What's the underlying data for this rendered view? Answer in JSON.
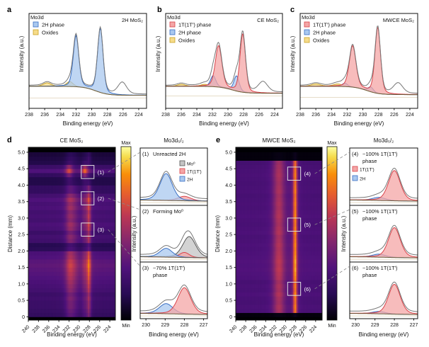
{
  "chart_data": [
    {
      "type": "area",
      "panel_label": "a",
      "title": "2H MoS₂",
      "core_level": "Mo3d",
      "xlabel": "Binding energy (eV)",
      "ylabel": "Intensity (a.u.)",
      "xlim": [
        238,
        223
      ],
      "xticks": [
        238,
        236,
        234,
        232,
        230,
        228,
        226,
        224
      ],
      "legend": [
        {
          "name": "2H phase",
          "color": "#a9c8ef",
          "stroke": "#3a6fc4"
        },
        {
          "name": "Oxides",
          "color": "#f6dc8a",
          "stroke": "#c9a227"
        }
      ],
      "components": [
        {
          "name": "Oxides",
          "color": "#f6dc8a",
          "stroke": "#c9a227",
          "peaks": [
            [
              235.7,
              0.05,
              0.6
            ],
            [
              232.8,
              0.07,
              0.5
            ]
          ]
        },
        {
          "name": "2H phase",
          "color": "#a9c8ef",
          "stroke": "#3a6fc4",
          "peaks": [
            [
              232.0,
              0.74,
              0.42
            ],
            [
              228.9,
              0.93,
              0.42
            ]
          ]
        }
      ],
      "other_peaks": [
        [
          226.1,
          0.17,
          0.65
        ]
      ],
      "background": [
        0.0,
        -0.13,
        229.5
      ]
    },
    {
      "type": "area",
      "panel_label": "b",
      "title": "CE MoS₂",
      "core_level": "Mo3d",
      "xlabel": "Binding energy (eV)",
      "ylabel": "Intensity (a.u.)",
      "xlim": [
        238,
        223
      ],
      "xticks": [
        238,
        236,
        234,
        232,
        230,
        228,
        226,
        224
      ],
      "legend": [
        {
          "name": "1T(1T′) phase",
          "color": "#f4a6a6",
          "stroke": "#d9434a"
        },
        {
          "name": "2H phase",
          "color": "#a9c8ef",
          "stroke": "#3a6fc4"
        },
        {
          "name": "Oxides",
          "color": "#f6dc8a",
          "stroke": "#c9a227"
        }
      ],
      "components": [
        {
          "name": "Oxides",
          "color": "#f6dc8a",
          "stroke": "#c9a227",
          "peaks": [
            [
              236.0,
              0.03,
              0.6
            ],
            [
              233.0,
              0.03,
              0.6
            ]
          ]
        },
        {
          "name": "2H phase",
          "color": "#a9c8ef",
          "stroke": "#3a6fc4",
          "peaks": [
            [
              231.9,
              0.16,
              0.4
            ],
            [
              228.9,
              0.22,
              0.4
            ]
          ]
        },
        {
          "name": "1T(1T′) phase",
          "color": "#f4a6a6",
          "stroke": "#d9434a",
          "peaks": [
            [
              231.2,
              0.6,
              0.5
            ],
            [
              228.1,
              0.85,
              0.42
            ]
          ]
        }
      ],
      "other_peaks": [
        [
          225.5,
          0.15,
          0.7
        ]
      ],
      "background": [
        0.0,
        -0.1,
        229.5
      ]
    },
    {
      "type": "area",
      "panel_label": "c",
      "title": "MWCE MoS₂",
      "core_level": "Mo3d",
      "xlabel": "Binding energy (eV)",
      "ylabel": "Intensity (a.u.)",
      "xlim": [
        238,
        223
      ],
      "xticks": [
        238,
        236,
        234,
        232,
        230,
        228,
        226,
        224
      ],
      "legend": [
        {
          "name": "1T(1T′) phase",
          "color": "#f4a6a6",
          "stroke": "#d9434a"
        },
        {
          "name": "2H phase",
          "color": "#a9c8ef",
          "stroke": "#3a6fc4"
        },
        {
          "name": "Oxides",
          "color": "#f6dc8a",
          "stroke": "#c9a227"
        }
      ],
      "components": [
        {
          "name": "Oxides",
          "color": "#f6dc8a",
          "stroke": "#c9a227",
          "peaks": [
            [
              236.0,
              0.035,
              0.7
            ],
            [
              233.2,
              0.035,
              0.7
            ]
          ]
        },
        {
          "name": "2H phase",
          "color": "#a9c8ef",
          "stroke": "#3a6fc4",
          "peaks": [
            [
              232.3,
              0.05,
              0.4
            ],
            [
              229.0,
              0.07,
              0.4
            ]
          ]
        },
        {
          "name": "1T(1T′) phase",
          "color": "#f4a6a6",
          "stroke": "#d9434a",
          "peaks": [
            [
              231.3,
              0.6,
              0.5
            ],
            [
              228.1,
              0.96,
              0.42
            ]
          ]
        }
      ],
      "other_peaks": [
        [
          225.5,
          0.15,
          0.7
        ]
      ],
      "background": [
        0.0,
        -0.12,
        229.5
      ]
    },
    {
      "type": "heatmap",
      "panel_label": "d",
      "title": "CE MoS₂",
      "xlabel": "Binding energy (eV)",
      "ylabel": "Distance (mm)",
      "xlim": [
        240,
        222.9
      ],
      "ylim": [
        -0.1,
        5.15
      ],
      "xticks": [
        240,
        238,
        236,
        234,
        232,
        230,
        228,
        226,
        224
      ],
      "yticks": [
        0,
        0.5,
        1.0,
        1.5,
        2.0,
        2.5,
        3.0,
        3.5,
        4.0,
        4.5,
        5.0
      ],
      "colorbar": {
        "max_label": "Max",
        "min_label": "Min"
      },
      "row_step_mm": 0.125,
      "row_intensity": [
        0.5,
        0.55,
        0.6,
        0.6,
        0.65,
        0.6,
        0.7,
        0.75,
        0.8,
        0.85,
        0.9,
        0.95,
        1.0,
        0.95,
        0.85,
        0.8,
        0.4,
        0.35,
        0.65,
        0.7,
        0.6,
        0.75,
        0.8,
        0.7,
        0.75,
        0.7,
        0.8,
        0.75,
        0.85,
        0.7,
        0.5,
        0.5,
        0.3,
        0.3,
        0.5,
        0.85,
        0.6,
        0.3,
        0.25,
        0.2
      ],
      "row_2H_fraction": [
        0.3,
        0.3,
        0.3,
        0.3,
        0.3,
        0.3,
        0.3,
        0.3,
        0.3,
        0.3,
        0.3,
        0.3,
        0.3,
        0.3,
        0.3,
        0.3,
        0.3,
        0.3,
        0.3,
        0.3,
        0.3,
        0.3,
        0.3,
        0.3,
        0.3,
        0.3,
        0.3,
        0.3,
        0.3,
        0.3,
        0.3,
        0.3,
        0.5,
        0.6,
        0.9,
        0.9,
        0.9,
        0.5,
        0.3,
        0.3
      ],
      "regions": [
        {
          "label": "(1)",
          "distance": [
            4.2,
            4.6
          ],
          "energy": [
            229.6,
            227.1
          ]
        },
        {
          "label": "(2)",
          "distance": [
            3.4,
            3.8
          ],
          "energy": [
            229.6,
            227.1
          ]
        },
        {
          "label": "(3)",
          "distance": [
            2.45,
            2.85
          ],
          "energy": [
            229.6,
            227.1
          ]
        }
      ],
      "spectra": {
        "title": "Mo3d₅/₂",
        "xlabel": "Binding energy (eV)",
        "ylabel": "Intensity (a.u.)",
        "xlim": [
          230.3,
          226.8
        ],
        "xticks": [
          230,
          229,
          228,
          227
        ],
        "legend": [
          {
            "name": "Mo⁰",
            "color": "#c4c4c4",
            "stroke": "#555555"
          },
          {
            "name": "1T(1T′)",
            "color": "#f4a6a6",
            "stroke": "#d9434a"
          },
          {
            "name": "2H",
            "color": "#a9c8ef",
            "stroke": "#3a6fc4"
          }
        ],
        "insets": [
          {
            "label": "(1)",
            "text": "Unreacted 2H",
            "text2": "",
            "components": [
              {
                "name": "1T(1T′)",
                "color": "#f4a6a6",
                "stroke": "#d9434a",
                "peaks": [
                  [
                    228.0,
                    0.13,
                    0.4
                  ]
                ]
              },
              {
                "name": "2H",
                "color": "#a9c8ef",
                "stroke": "#3a6fc4",
                "peaks": [
                  [
                    228.95,
                    0.78,
                    0.38
                  ]
                ]
              }
            ]
          },
          {
            "label": "(2)",
            "text": "Forming Mo⁰",
            "text2": "",
            "components": [
              {
                "name": "Mo⁰",
                "color": "#c4c4c4",
                "stroke": "#555555",
                "peaks": [
                  [
                    227.75,
                    0.62,
                    0.4
                  ]
                ]
              },
              {
                "name": "1T(1T′)",
                "color": "#f4a6a6",
                "stroke": "#d9434a",
                "peaks": [
                  [
                    228.0,
                    0.15,
                    0.3
                  ]
                ]
              },
              {
                "name": "2H",
                "color": "#a9c8ef",
                "stroke": "#3a6fc4",
                "peaks": [
                  [
                    228.95,
                    0.26,
                    0.38
                  ]
                ]
              }
            ]
          },
          {
            "label": "(3)",
            "text": "~70% 1T(1T′)",
            "text2": "phase",
            "components": [
              {
                "name": "2H",
                "color": "#a9c8ef",
                "stroke": "#3a6fc4",
                "peaks": [
                  [
                    228.95,
                    0.3,
                    0.42
                  ]
                ]
              },
              {
                "name": "1T(1T′)",
                "color": "#f4a6a6",
                "stroke": "#d9434a",
                "peaks": [
                  [
                    228.0,
                    0.78,
                    0.4
                  ]
                ]
              }
            ]
          }
        ]
      }
    },
    {
      "type": "heatmap",
      "panel_label": "e",
      "title": "MWCE MoS₂",
      "xlabel": "Binding energy (eV)",
      "ylabel": "Distance (mm)",
      "xlim": [
        240,
        222.7
      ],
      "ylim": [
        -0.1,
        5.15
      ],
      "xticks": [
        240,
        238,
        236,
        234,
        232,
        230,
        228,
        226,
        224
      ],
      "yticks": [
        0,
        0.5,
        1.0,
        1.5,
        2.0,
        2.5,
        3.0,
        3.5,
        4.0,
        4.5,
        5.0
      ],
      "colorbar": {
        "max_label": "Max",
        "min_label": "Min"
      },
      "row_step_mm": 0.125,
      "row_intensity": [
        0.05,
        0.9,
        0.92,
        0.88,
        0.9,
        0.95,
        0.9,
        0.92,
        0.88,
        0.95,
        0.97,
        1.0,
        0.98,
        1.0,
        0.97,
        0.95,
        0.93,
        0.95,
        0.92,
        0.9,
        0.95,
        0.93,
        0.9,
        0.92,
        0.95,
        0.93,
        0.9,
        0.92,
        0.9,
        0.88,
        0.92,
        0.9,
        0.88,
        0.9,
        0.92,
        0.9,
        0.88,
        0.85,
        0.05,
        0.05
      ],
      "row_2H_fraction": [
        0.05,
        0.05,
        0.05,
        0.05,
        0.05,
        0.05,
        0.05,
        0.05,
        0.05,
        0.05,
        0.05,
        0.05,
        0.05,
        0.05,
        0.05,
        0.05,
        0.05,
        0.05,
        0.05,
        0.05,
        0.05,
        0.05,
        0.05,
        0.05,
        0.05,
        0.05,
        0.05,
        0.05,
        0.05,
        0.05,
        0.05,
        0.05,
        0.05,
        0.05,
        0.05,
        0.05,
        0.05,
        0.05,
        0.05,
        0.05
      ],
      "regions": [
        {
          "label": "(4)",
          "distance": [
            4.15,
            4.55
          ],
          "energy": [
            229.6,
            227.0
          ]
        },
        {
          "label": "(5)",
          "distance": [
            2.6,
            3.0
          ],
          "energy": [
            229.6,
            227.0
          ]
        },
        {
          "label": "(6)",
          "distance": [
            0.65,
            1.05
          ],
          "energy": [
            229.6,
            227.0
          ]
        }
      ],
      "spectra": {
        "title": "Mo3d₅/₂",
        "xlabel": "Binding energy (eV)",
        "ylabel": "Intensity (a.u.)",
        "xlim": [
          230.3,
          226.8
        ],
        "xticks": [
          230,
          229,
          228,
          227
        ],
        "legend": [
          {
            "name": "1T(1T′)",
            "color": "#f4a6a6",
            "stroke": "#d9434a"
          },
          {
            "name": "2H",
            "color": "#a9c8ef",
            "stroke": "#3a6fc4"
          }
        ],
        "insets": [
          {
            "label": "(4)",
            "text": "~100% 1T(1T′)",
            "text2": "phase",
            "components": [
              {
                "name": "2H",
                "color": "#a9c8ef",
                "stroke": "#3a6fc4",
                "peaks": [
                  [
                    228.8,
                    0.09,
                    0.4
                  ]
                ]
              },
              {
                "name": "1T(1T′)",
                "color": "#f4a6a6",
                "stroke": "#d9434a",
                "peaks": [
                  [
                    228.0,
                    0.88,
                    0.36
                  ]
                ]
              }
            ]
          },
          {
            "label": "(5)",
            "text": "~100% 1T(1T′)",
            "text2": "phase",
            "components": [
              {
                "name": "2H",
                "color": "#a9c8ef",
                "stroke": "#3a6fc4",
                "peaks": [
                  [
                    228.8,
                    0.09,
                    0.4
                  ]
                ]
              },
              {
                "name": "1T(1T′)",
                "color": "#f4a6a6",
                "stroke": "#d9434a",
                "peaks": [
                  [
                    228.0,
                    0.88,
                    0.36
                  ]
                ]
              }
            ]
          },
          {
            "label": "(6)",
            "text": "~100% 1T(1T′)",
            "text2": "phase",
            "components": [
              {
                "name": "2H",
                "color": "#a9c8ef",
                "stroke": "#3a6fc4",
                "peaks": [
                  [
                    228.8,
                    0.07,
                    0.4
                  ]
                ]
              },
              {
                "name": "1T(1T′)",
                "color": "#f4a6a6",
                "stroke": "#d9434a",
                "peaks": [
                  [
                    228.0,
                    0.88,
                    0.36
                  ]
                ]
              }
            ]
          }
        ]
      }
    }
  ]
}
